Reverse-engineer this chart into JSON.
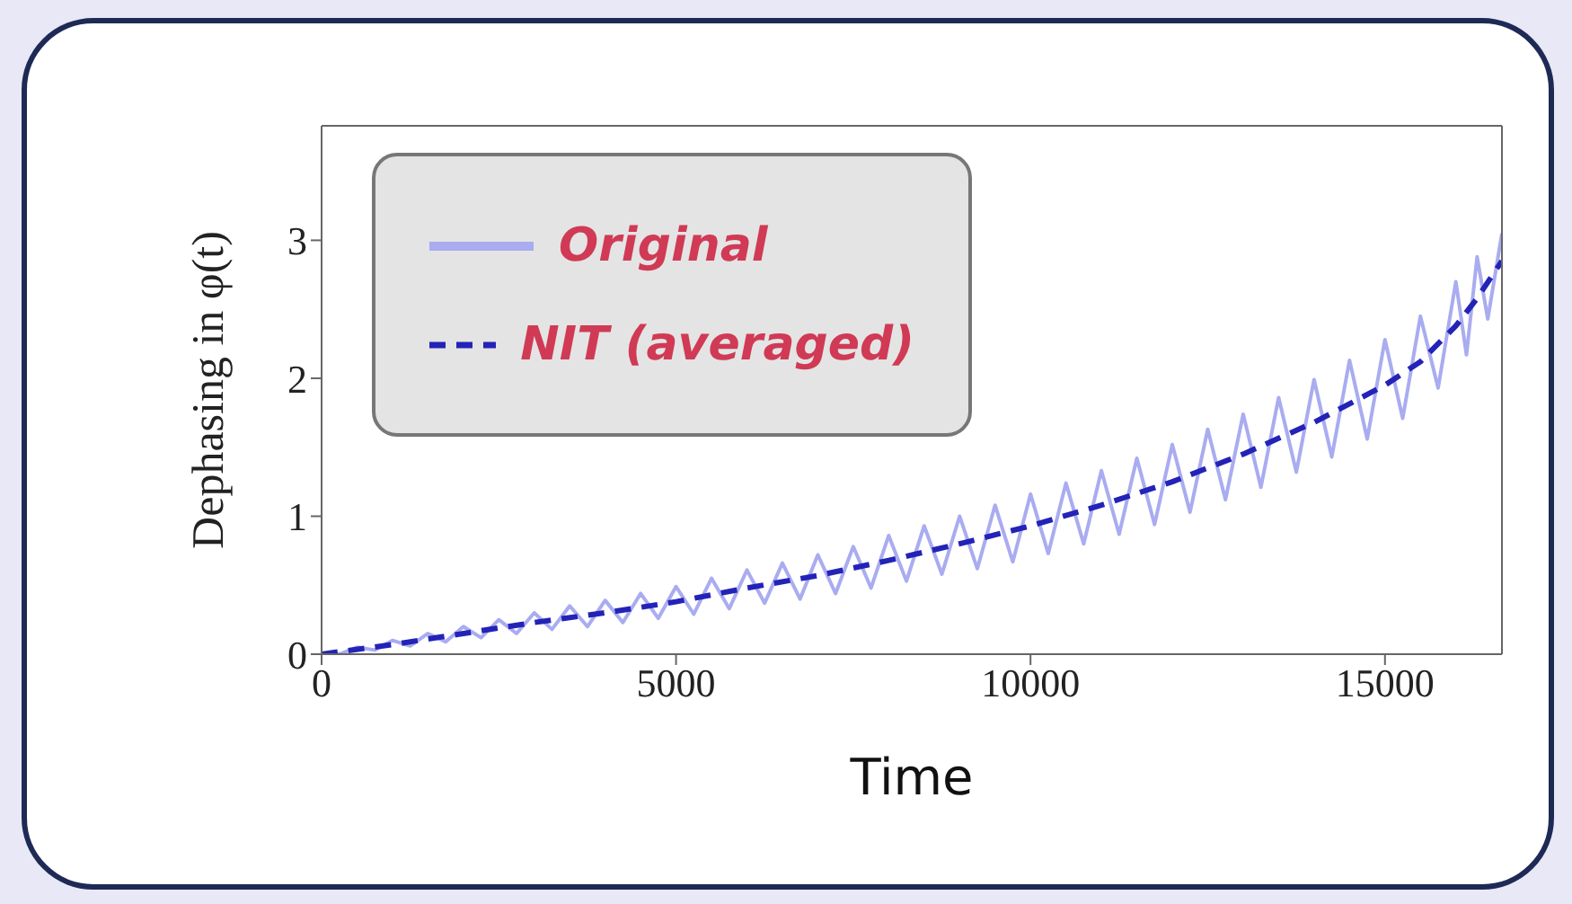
{
  "chart_data": {
    "type": "line",
    "xlabel": "Time",
    "ylabel": "Dephasing in φ(t)",
    "xlim": [
      0,
      16650
    ],
    "ylim": [
      0,
      3.83
    ],
    "xticks": [
      0,
      5000,
      10000,
      15000
    ],
    "yticks": [
      0,
      1,
      2,
      3
    ],
    "legend": "top left",
    "marker": "none",
    "series": [
      {
        "name": "Original",
        "color": "#a9acf0",
        "line_style": "solid",
        "x": [
          0,
          250,
          500,
          750,
          1000,
          1250,
          1500,
          1750,
          2000,
          2250,
          2500,
          2750,
          3000,
          3250,
          3500,
          3750,
          4000,
          4250,
          4500,
          4750,
          5000,
          5250,
          5500,
          5750,
          6000,
          6250,
          6500,
          6750,
          7000,
          7250,
          7500,
          7750,
          8000,
          8250,
          8500,
          8750,
          9000,
          9250,
          9500,
          9750,
          10000,
          10250,
          10500,
          10750,
          11000,
          11250,
          11500,
          11750,
          12000,
          12250,
          12500,
          12750,
          13000,
          13250,
          13500,
          13750,
          14000,
          14250,
          14500,
          14750,
          15000,
          15250,
          15500,
          15750,
          16000,
          16150,
          16300,
          16450,
          16650
        ],
        "values": [
          0,
          0,
          0.05,
          0.03,
          0.1,
          0.06,
          0.15,
          0.09,
          0.2,
          0.12,
          0.25,
          0.15,
          0.3,
          0.18,
          0.35,
          0.2,
          0.39,
          0.23,
          0.44,
          0.26,
          0.49,
          0.29,
          0.55,
          0.33,
          0.61,
          0.37,
          0.66,
          0.4,
          0.72,
          0.44,
          0.78,
          0.48,
          0.86,
          0.53,
          0.93,
          0.58,
          1.0,
          0.62,
          1.08,
          0.67,
          1.16,
          0.73,
          1.24,
          0.8,
          1.33,
          0.87,
          1.42,
          0.94,
          1.52,
          1.03,
          1.63,
          1.12,
          1.74,
          1.21,
          1.86,
          1.32,
          1.99,
          1.43,
          2.13,
          1.56,
          2.28,
          1.71,
          2.45,
          1.93,
          2.7,
          2.17,
          2.88,
          2.43,
          3.05
        ]
      },
      {
        "name": "NIT (averaged)",
        "color": "#2323b8",
        "line_style": "dashed",
        "x": [
          0,
          1000,
          2000,
          3000,
          4000,
          5000,
          6000,
          7000,
          8000,
          9000,
          10000,
          11000,
          12000,
          13000,
          14000,
          15000,
          15500,
          16000,
          16300,
          16650
        ],
        "values": [
          0,
          0.07,
          0.15,
          0.23,
          0.3,
          0.38,
          0.48,
          0.57,
          0.68,
          0.8,
          0.93,
          1.08,
          1.25,
          1.45,
          1.68,
          1.95,
          2.12,
          2.38,
          2.58,
          2.85
        ]
      }
    ]
  }
}
